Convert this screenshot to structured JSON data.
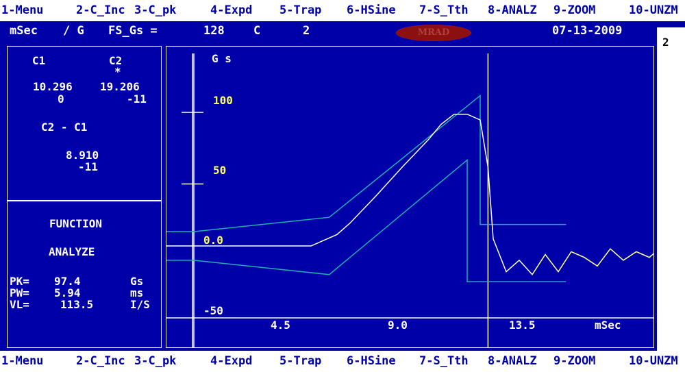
{
  "function_keys_top": [
    {
      "label": "1-Menu"
    },
    {
      "label": "2-C_Inc"
    },
    {
      "label": "3-C_pk"
    },
    {
      "label": "4-Expd"
    },
    {
      "label": "5-Trap"
    },
    {
      "label": "6-HSine"
    },
    {
      "label": "7-S_Tth"
    },
    {
      "label": "8-ANALZ"
    },
    {
      "label": "9-ZOOM"
    },
    {
      "label": "10-UNZM"
    }
  ],
  "function_keys_bottom": [
    {
      "label": "1-Menu"
    },
    {
      "label": "2-C_Inc"
    },
    {
      "label": "3-C_pk"
    },
    {
      "label": "4-Expd"
    },
    {
      "label": "5-Trap"
    },
    {
      "label": "6-HSine"
    },
    {
      "label": "7-S_Tth"
    },
    {
      "label": "8-ANALZ"
    },
    {
      "label": "9-ZOOM"
    },
    {
      "label": "10-UNZM"
    }
  ],
  "header": {
    "units": "mSec",
    "per": "/ G",
    "fs_label": "FS_Gs =",
    "fs_value": "128",
    "channel_label": "C",
    "channel_value": "2",
    "logo_text": "MRAD",
    "date": "07-13-2009"
  },
  "side_indicator": "2",
  "cursors": {
    "c1_label": "C1",
    "c2_label": "C2",
    "c2_active_marker": "*",
    "c1_time": "10.296",
    "c2_time": "19.206",
    "c1_value": "0",
    "c2_value": "-11",
    "diff_label": "C2 - C1",
    "diff_time": "8.910",
    "diff_value": "-11"
  },
  "function": {
    "title": "FUNCTION",
    "mode": "ANALYZE",
    "pk_label": "PK=",
    "pk_value": "97.4",
    "pk_unit": "Gs",
    "pw_label": "PW=",
    "pw_value": "5.94",
    "pw_unit": "ms",
    "vl_label": "VL=",
    "vl_value": "113.5",
    "vl_unit": "I/S"
  },
  "colors": {
    "background": "#0000a8",
    "trace": "#ffffff",
    "trace_tail": "#ffff55",
    "tolerance": "#20b0b0",
    "axis_labels": "#ffff55"
  },
  "chart_data": {
    "type": "line",
    "ylabel": "G s",
    "xlabel": "mSec",
    "yticks": [
      "100",
      "50",
      "0.0",
      "-50"
    ],
    "xticks": [
      "4.5",
      "9.0",
      "13.5"
    ],
    "ylim": [
      -55,
      128
    ],
    "xlim": [
      -1,
      19.5
    ],
    "cursor_x": [
      1.0,
      12.3
    ],
    "series": [
      {
        "role": "upper-tolerance",
        "x": [
          -1,
          1.0,
          6.2,
          12.0,
          12.0,
          15.3
        ],
        "y": [
          10,
          10,
          20,
          105,
          15,
          15
        ]
      },
      {
        "role": "lower-tolerance",
        "x": [
          -1,
          1.0,
          6.2,
          11.5,
          11.5,
          15.3
        ],
        "y": [
          -10,
          -10,
          -20,
          60,
          -25,
          -25
        ]
      },
      {
        "role": "measured-pulse",
        "x": [
          -1,
          1,
          3,
          5.5,
          6.5,
          7,
          8,
          9,
          10,
          10.5,
          11,
          11.5,
          12,
          12.3,
          12.5,
          13,
          13.5,
          14,
          14.5,
          15,
          15.5,
          16,
          16.5,
          17,
          17.5,
          18,
          18.5,
          19,
          19.5
        ],
        "y": [
          0,
          0,
          0,
          0,
          8,
          16,
          35,
          55,
          74,
          85,
          92,
          92,
          88,
          55,
          5,
          -18,
          -10,
          -20,
          -6,
          -18,
          -4,
          -8,
          -14,
          -2,
          -10,
          -4,
          -8,
          0,
          -2
        ]
      }
    ]
  }
}
